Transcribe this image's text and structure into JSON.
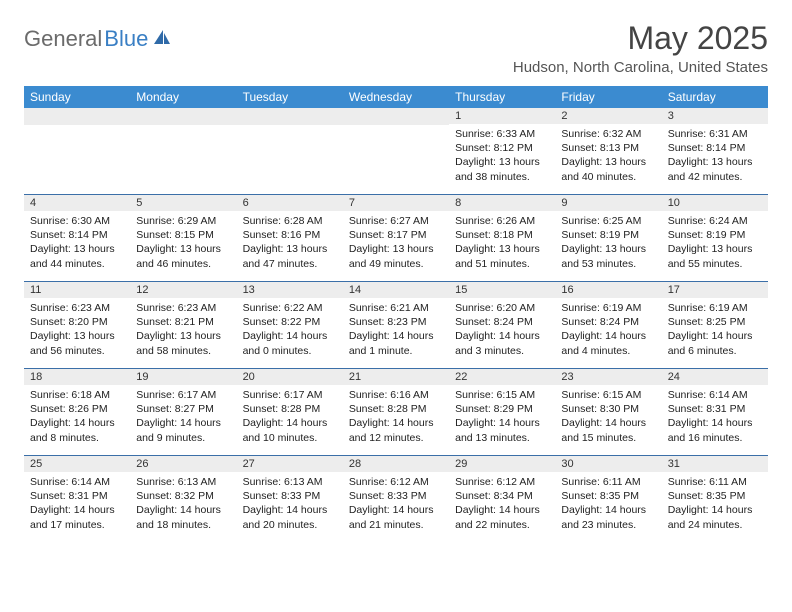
{
  "logo": {
    "part1": "General",
    "part2": "Blue"
  },
  "title": "May 2025",
  "location": "Hudson, North Carolina, United States",
  "colors": {
    "header_bg": "#3b8bd0",
    "header_text": "#ffffff",
    "daynum_bg": "#ededed",
    "week_border": "#3b6fa8",
    "logo_gray": "#6b6b6b",
    "logo_blue": "#3a7fc4"
  },
  "weekdays": [
    "Sunday",
    "Monday",
    "Tuesday",
    "Wednesday",
    "Thursday",
    "Friday",
    "Saturday"
  ],
  "weeks": [
    [
      {
        "n": "",
        "sr": "",
        "ss": "",
        "dl": ""
      },
      {
        "n": "",
        "sr": "",
        "ss": "",
        "dl": ""
      },
      {
        "n": "",
        "sr": "",
        "ss": "",
        "dl": ""
      },
      {
        "n": "",
        "sr": "",
        "ss": "",
        "dl": ""
      },
      {
        "n": "1",
        "sr": "Sunrise: 6:33 AM",
        "ss": "Sunset: 8:12 PM",
        "dl": "Daylight: 13 hours and 38 minutes."
      },
      {
        "n": "2",
        "sr": "Sunrise: 6:32 AM",
        "ss": "Sunset: 8:13 PM",
        "dl": "Daylight: 13 hours and 40 minutes."
      },
      {
        "n": "3",
        "sr": "Sunrise: 6:31 AM",
        "ss": "Sunset: 8:14 PM",
        "dl": "Daylight: 13 hours and 42 minutes."
      }
    ],
    [
      {
        "n": "4",
        "sr": "Sunrise: 6:30 AM",
        "ss": "Sunset: 8:14 PM",
        "dl": "Daylight: 13 hours and 44 minutes."
      },
      {
        "n": "5",
        "sr": "Sunrise: 6:29 AM",
        "ss": "Sunset: 8:15 PM",
        "dl": "Daylight: 13 hours and 46 minutes."
      },
      {
        "n": "6",
        "sr": "Sunrise: 6:28 AM",
        "ss": "Sunset: 8:16 PM",
        "dl": "Daylight: 13 hours and 47 minutes."
      },
      {
        "n": "7",
        "sr": "Sunrise: 6:27 AM",
        "ss": "Sunset: 8:17 PM",
        "dl": "Daylight: 13 hours and 49 minutes."
      },
      {
        "n": "8",
        "sr": "Sunrise: 6:26 AM",
        "ss": "Sunset: 8:18 PM",
        "dl": "Daylight: 13 hours and 51 minutes."
      },
      {
        "n": "9",
        "sr": "Sunrise: 6:25 AM",
        "ss": "Sunset: 8:19 PM",
        "dl": "Daylight: 13 hours and 53 minutes."
      },
      {
        "n": "10",
        "sr": "Sunrise: 6:24 AM",
        "ss": "Sunset: 8:19 PM",
        "dl": "Daylight: 13 hours and 55 minutes."
      }
    ],
    [
      {
        "n": "11",
        "sr": "Sunrise: 6:23 AM",
        "ss": "Sunset: 8:20 PM",
        "dl": "Daylight: 13 hours and 56 minutes."
      },
      {
        "n": "12",
        "sr": "Sunrise: 6:23 AM",
        "ss": "Sunset: 8:21 PM",
        "dl": "Daylight: 13 hours and 58 minutes."
      },
      {
        "n": "13",
        "sr": "Sunrise: 6:22 AM",
        "ss": "Sunset: 8:22 PM",
        "dl": "Daylight: 14 hours and 0 minutes."
      },
      {
        "n": "14",
        "sr": "Sunrise: 6:21 AM",
        "ss": "Sunset: 8:23 PM",
        "dl": "Daylight: 14 hours and 1 minute."
      },
      {
        "n": "15",
        "sr": "Sunrise: 6:20 AM",
        "ss": "Sunset: 8:24 PM",
        "dl": "Daylight: 14 hours and 3 minutes."
      },
      {
        "n": "16",
        "sr": "Sunrise: 6:19 AM",
        "ss": "Sunset: 8:24 PM",
        "dl": "Daylight: 14 hours and 4 minutes."
      },
      {
        "n": "17",
        "sr": "Sunrise: 6:19 AM",
        "ss": "Sunset: 8:25 PM",
        "dl": "Daylight: 14 hours and 6 minutes."
      }
    ],
    [
      {
        "n": "18",
        "sr": "Sunrise: 6:18 AM",
        "ss": "Sunset: 8:26 PM",
        "dl": "Daylight: 14 hours and 8 minutes."
      },
      {
        "n": "19",
        "sr": "Sunrise: 6:17 AM",
        "ss": "Sunset: 8:27 PM",
        "dl": "Daylight: 14 hours and 9 minutes."
      },
      {
        "n": "20",
        "sr": "Sunrise: 6:17 AM",
        "ss": "Sunset: 8:28 PM",
        "dl": "Daylight: 14 hours and 10 minutes."
      },
      {
        "n": "21",
        "sr": "Sunrise: 6:16 AM",
        "ss": "Sunset: 8:28 PM",
        "dl": "Daylight: 14 hours and 12 minutes."
      },
      {
        "n": "22",
        "sr": "Sunrise: 6:15 AM",
        "ss": "Sunset: 8:29 PM",
        "dl": "Daylight: 14 hours and 13 minutes."
      },
      {
        "n": "23",
        "sr": "Sunrise: 6:15 AM",
        "ss": "Sunset: 8:30 PM",
        "dl": "Daylight: 14 hours and 15 minutes."
      },
      {
        "n": "24",
        "sr": "Sunrise: 6:14 AM",
        "ss": "Sunset: 8:31 PM",
        "dl": "Daylight: 14 hours and 16 minutes."
      }
    ],
    [
      {
        "n": "25",
        "sr": "Sunrise: 6:14 AM",
        "ss": "Sunset: 8:31 PM",
        "dl": "Daylight: 14 hours and 17 minutes."
      },
      {
        "n": "26",
        "sr": "Sunrise: 6:13 AM",
        "ss": "Sunset: 8:32 PM",
        "dl": "Daylight: 14 hours and 18 minutes."
      },
      {
        "n": "27",
        "sr": "Sunrise: 6:13 AM",
        "ss": "Sunset: 8:33 PM",
        "dl": "Daylight: 14 hours and 20 minutes."
      },
      {
        "n": "28",
        "sr": "Sunrise: 6:12 AM",
        "ss": "Sunset: 8:33 PM",
        "dl": "Daylight: 14 hours and 21 minutes."
      },
      {
        "n": "29",
        "sr": "Sunrise: 6:12 AM",
        "ss": "Sunset: 8:34 PM",
        "dl": "Daylight: 14 hours and 22 minutes."
      },
      {
        "n": "30",
        "sr": "Sunrise: 6:11 AM",
        "ss": "Sunset: 8:35 PM",
        "dl": "Daylight: 14 hours and 23 minutes."
      },
      {
        "n": "31",
        "sr": "Sunrise: 6:11 AM",
        "ss": "Sunset: 8:35 PM",
        "dl": "Daylight: 14 hours and 24 minutes."
      }
    ]
  ]
}
